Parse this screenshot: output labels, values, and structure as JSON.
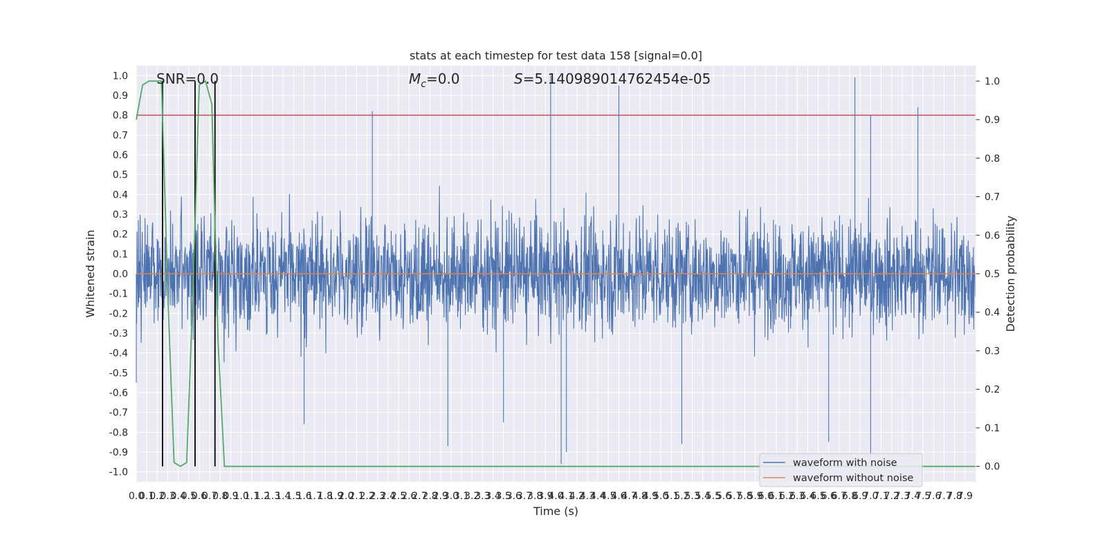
{
  "chart_data": {
    "type": "line",
    "title": "stats at each timestep for test data 158 [signal=0.0]",
    "xlabel": "Time (s)",
    "ylabel": "Whitened strain",
    "ylabel_right": "Detection probability",
    "xlim": [
      0.0,
      8.0
    ],
    "ylim": [
      -1.05,
      1.05
    ],
    "ylim_right": [
      -0.04,
      1.04
    ],
    "xtick_step": 0.1,
    "xtick_max": 7.9,
    "yticks": [
      -1.0,
      -0.9,
      -0.8,
      -0.7,
      -0.6,
      -0.5,
      -0.4,
      -0.3,
      -0.2,
      -0.1,
      0.0,
      0.1,
      0.2,
      0.3,
      0.4,
      0.5,
      0.6,
      0.7,
      0.8,
      0.9,
      1.0
    ],
    "yticks_right": [
      0.0,
      0.1,
      0.2,
      0.3,
      0.4,
      0.5,
      0.6,
      0.7,
      0.8,
      0.9,
      1.0
    ],
    "grid": true,
    "legend_position": "lower right",
    "annotations": {
      "snr": "SNR=0.0",
      "mc_symbol": "M",
      "mc_sub": "c",
      "mc_value": "=0.0",
      "s_symbol": "S",
      "s_value": "=5.140989014762454e-05"
    },
    "series": [
      {
        "name": "waveform with noise",
        "color": "#4c72b0",
        "axis": "left",
        "description": "whitened noise, roughly within ±0.5 with spikes up to ±1.0",
        "peaks": [
          {
            "x": 2.25,
            "y": 0.82
          },
          {
            "x": 3.95,
            "y": 1.0
          },
          {
            "x": 4.6,
            "y": 0.95
          },
          {
            "x": 6.85,
            "y": 0.99
          },
          {
            "x": 7.0,
            "y": 0.8
          },
          {
            "x": 7.45,
            "y": 0.84
          },
          {
            "x": 4.05,
            "y": -0.96
          },
          {
            "x": 4.1,
            "y": -0.9
          },
          {
            "x": 2.97,
            "y": -0.87
          },
          {
            "x": 5.2,
            "y": -0.86
          },
          {
            "x": 6.6,
            "y": -0.85
          },
          {
            "x": 7.0,
            "y": -0.93
          },
          {
            "x": 3.5,
            "y": -0.75
          },
          {
            "x": 1.6,
            "y": -0.76
          },
          {
            "x": 0.0,
            "y": -0.55
          }
        ]
      },
      {
        "name": "waveform without noise",
        "color": "#dd8452",
        "axis": "left",
        "x": [
          0.0,
          8.0
        ],
        "y": [
          0.0,
          0.0
        ]
      },
      {
        "name": "detection probability",
        "color": "#55a868",
        "axis": "right",
        "x": [
          0.0,
          0.06,
          0.12,
          0.18,
          0.24,
          0.3,
          0.36,
          0.42,
          0.48,
          0.54,
          0.6,
          0.66,
          0.72,
          0.78,
          0.84,
          0.9,
          8.0
        ],
        "y": [
          0.9,
          0.99,
          1.0,
          1.0,
          1.0,
          0.45,
          0.01,
          0.0,
          0.01,
          0.45,
          0.99,
          1.0,
          0.94,
          0.32,
          0.0,
          0.0,
          0.0
        ]
      }
    ],
    "threshold": {
      "value": 0.8,
      "color": "#c44e52",
      "axis": "left"
    },
    "vertical_markers": {
      "x": [
        0.25,
        0.56,
        0.75
      ],
      "color": "#000000",
      "range_right": [
        0.0,
        1.0
      ]
    }
  }
}
